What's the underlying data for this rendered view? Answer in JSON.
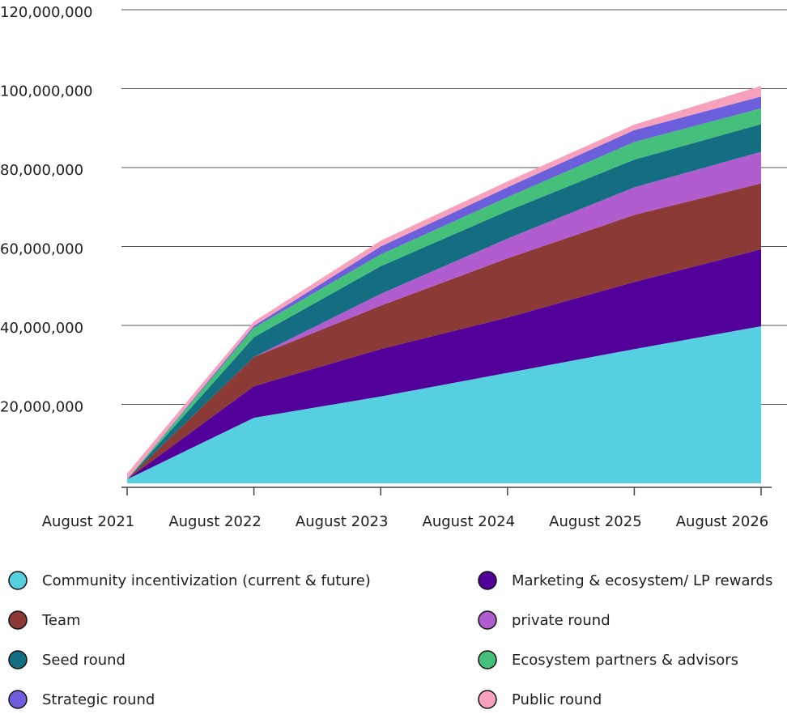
{
  "chart_data": {
    "type": "stacked_area",
    "categories": [
      "August 2021",
      "August 2022",
      "August 2023",
      "August 2024",
      "August 2025",
      "August 2026"
    ],
    "series": [
      {
        "name": "Community incentivization (current & future)",
        "color": "#56cfe0",
        "values": [
          1000000,
          16600000,
          22000000,
          28000000,
          34000000,
          39800000
        ]
      },
      {
        "name": "Marketing & ecosystem/ LP rewards",
        "color": "#520099",
        "values": [
          0,
          8000000,
          12000000,
          14000000,
          17000000,
          19500000
        ]
      },
      {
        "name": "Team",
        "color": "#8b3a36",
        "values": [
          0,
          7400000,
          11000000,
          15000000,
          17000000,
          16700000
        ]
      },
      {
        "name": "private round",
        "color": "#b05dd0",
        "values": [
          0,
          0,
          3000000,
          5000000,
          7000000,
          8000000
        ]
      },
      {
        "name": "Seed round",
        "color": "#126e80",
        "values": [
          0,
          5000000,
          7000000,
          7000000,
          7000000,
          7000000
        ]
      },
      {
        "name": "Ecosystem partners & advisors",
        "color": "#45c07a",
        "values": [
          0,
          2400000,
          3000000,
          3500000,
          4500000,
          4000000
        ]
      },
      {
        "name": "Strategic round",
        "color": "#6b5fdc",
        "values": [
          0,
          500000,
          2000000,
          2500000,
          3000000,
          3000000
        ]
      },
      {
        "name": "Public round",
        "color": "#f7a1bd",
        "values": [
          1500000,
          1100000,
          1500000,
          1500000,
          1400000,
          2700000
        ]
      }
    ],
    "ylim": [
      0,
      120000000
    ],
    "yticks": [
      {
        "value": 20000000,
        "label": "20,000,000"
      },
      {
        "value": 40000000,
        "label": "40,000,000"
      },
      {
        "value": 60000000,
        "label": "60,000,000"
      },
      {
        "value": 80000000,
        "label": "80,000,000"
      },
      {
        "value": 100000000,
        "label": "100,000,000"
      },
      {
        "value": 120000000,
        "label": "120,000,000"
      }
    ],
    "grid": true
  }
}
